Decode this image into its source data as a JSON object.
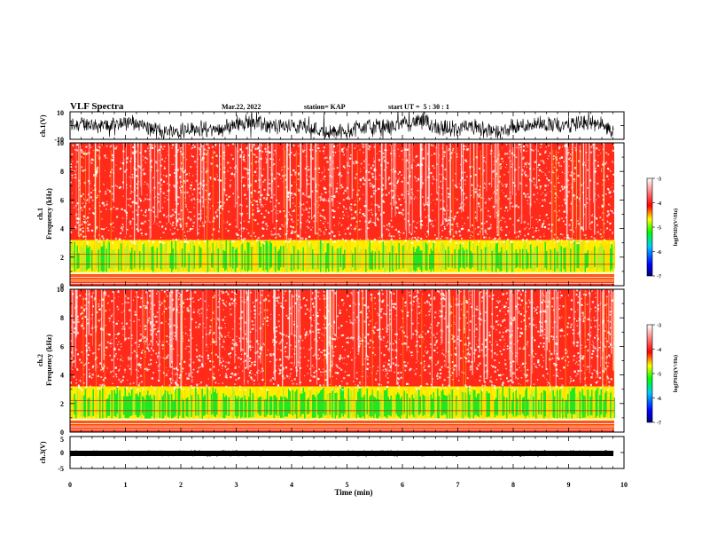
{
  "header": {
    "title": "VLF Spectra",
    "date": "Mar.22, 2022",
    "station": "station= KAP",
    "start": "start UT =  5 : 30 : 1"
  },
  "chart_data": [
    {
      "type": "line",
      "id": "ch1-waveform",
      "ylabel": "ch.1(V)",
      "ylim": [
        -10,
        10
      ],
      "yticks": [
        "10",
        "-10"
      ],
      "xlim": [
        0,
        10
      ],
      "description_values": "noisy waveform mostly between -10 and 10 V, baseline near -3 to 5 V"
    },
    {
      "type": "heatmap",
      "id": "ch1-spectrogram",
      "xlabel": "",
      "ylabel": "ch.1\nFrequency (kHz)",
      "ylabel_channel": "ch.1",
      "ylabel_freq": "Frequency (kHz)",
      "ylim": [
        0,
        10
      ],
      "yticks": [
        "0",
        "2",
        "4",
        "6",
        "8",
        "10"
      ],
      "xlim": [
        0,
        9.83
      ],
      "colorbar": {
        "label": "log(PSD)(V²/Hz)",
        "range": [
          -7,
          -3
        ],
        "ticks": [
          "-3",
          "-4",
          "-5",
          "-6",
          "-7"
        ],
        "colors": [
          "#000080",
          "#0000ff",
          "#00c8ff",
          "#00ff00",
          "#ffff00",
          "#ff0000",
          "#ffffff"
        ]
      }
    },
    {
      "type": "heatmap",
      "id": "ch2-spectrogram",
      "ylabel": "ch.2\nFrequency (kHz)",
      "ylabel_channel": "ch.2",
      "ylabel_freq": "Frequency (kHz)",
      "ylim": [
        0,
        10
      ],
      "yticks": [
        "0",
        "2",
        "4",
        "6",
        "8",
        "10"
      ],
      "xlim": [
        0,
        9.83
      ],
      "colorbar": {
        "label": "log(PSD)(V²/Hz)",
        "range": [
          -7,
          -3
        ],
        "ticks": [
          "-3",
          "-4",
          "-5",
          "-6",
          "-7"
        ],
        "colors": [
          "#000080",
          "#0000ff",
          "#00c8ff",
          "#00ff00",
          "#ffff00",
          "#ff0000",
          "#ffffff"
        ]
      }
    },
    {
      "type": "line",
      "id": "ch3-waveform",
      "ylabel": "ch.3(V)",
      "ylim": [
        -5,
        5
      ],
      "yticks": [
        "5",
        "0",
        "-5"
      ],
      "xlim": [
        0,
        10
      ],
      "xlabel": "Time (min)",
      "xticks": [
        "0",
        "1",
        "2",
        "3",
        "4",
        "5",
        "6",
        "7",
        "8",
        "9",
        "10"
      ]
    }
  ]
}
